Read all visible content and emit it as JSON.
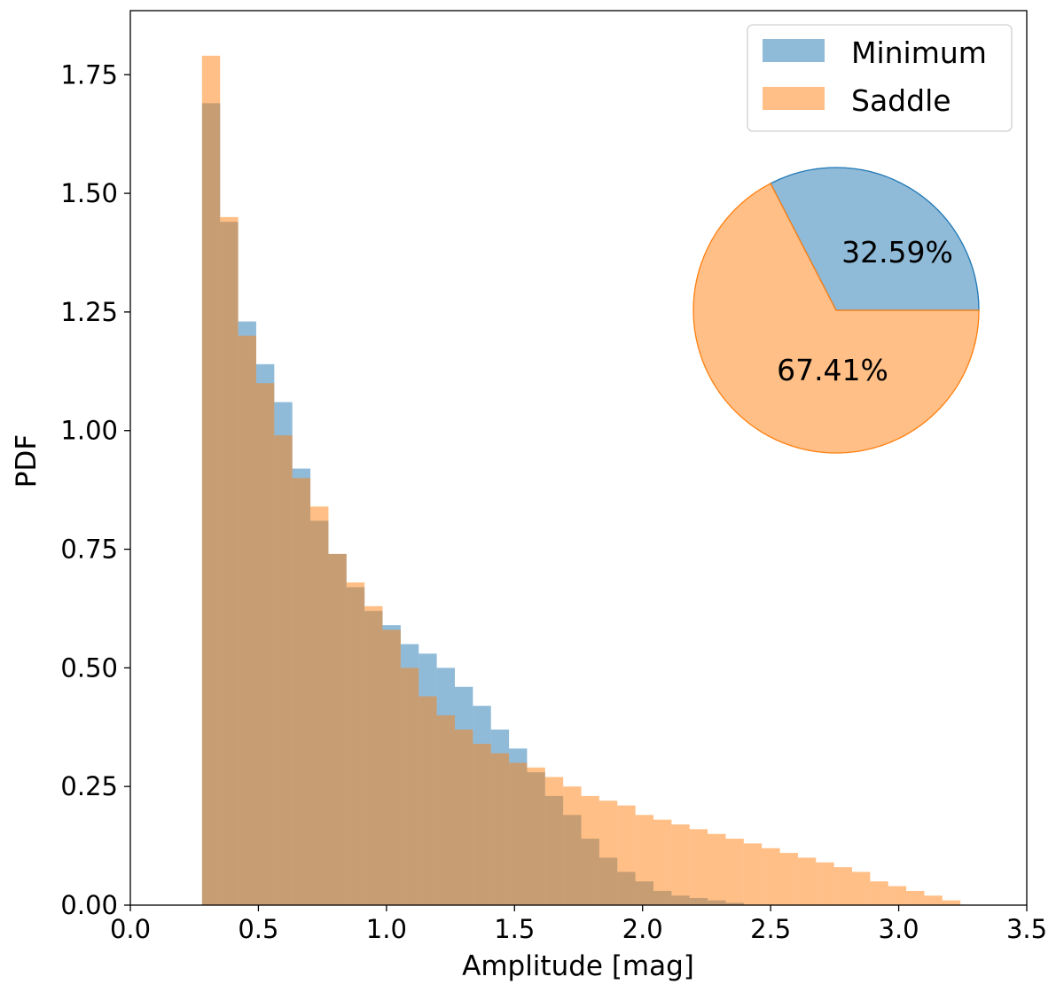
{
  "chart_data": {
    "type": "histogram",
    "title": "",
    "xlabel": "Amplitude [mag]",
    "ylabel": "PDF",
    "xlim": [
      0.0,
      3.5
    ],
    "ylim": [
      0.0,
      1.885
    ],
    "x_ticks": [
      "0.0",
      "0.5",
      "1.0",
      "1.5",
      "2.0",
      "2.5",
      "3.0",
      "3.5"
    ],
    "y_ticks": [
      "0.00",
      "0.25",
      "0.50",
      "0.75",
      "1.00",
      "1.25",
      "1.50",
      "1.75"
    ],
    "x_tick_values": [
      0.0,
      0.5,
      1.0,
      1.5,
      2.0,
      2.5,
      3.0,
      3.5
    ],
    "y_tick_values": [
      0.0,
      0.25,
      0.5,
      0.75,
      1.0,
      1.25,
      1.5,
      1.75
    ],
    "grid": false,
    "legend_position": "top-right",
    "bin_start": 0.28,
    "bin_width": 0.0705,
    "series": [
      {
        "name": "Minimum",
        "color": "#1f77b4",
        "values": [
          1.69,
          1.44,
          1.23,
          1.14,
          1.06,
          0.92,
          0.81,
          0.74,
          0.67,
          0.62,
          0.59,
          0.55,
          0.53,
          0.5,
          0.46,
          0.42,
          0.37,
          0.33,
          0.28,
          0.23,
          0.19,
          0.14,
          0.1,
          0.07,
          0.05,
          0.03,
          0.02,
          0.015,
          0.01,
          0.005
        ]
      },
      {
        "name": "Saddle",
        "color": "#ff7f0e",
        "values": [
          1.79,
          1.45,
          1.2,
          1.1,
          0.99,
          0.9,
          0.84,
          0.74,
          0.68,
          0.63,
          0.58,
          0.5,
          0.44,
          0.4,
          0.37,
          0.34,
          0.32,
          0.3,
          0.29,
          0.27,
          0.25,
          0.23,
          0.22,
          0.21,
          0.19,
          0.18,
          0.17,
          0.16,
          0.15,
          0.14,
          0.13,
          0.12,
          0.11,
          0.1,
          0.09,
          0.08,
          0.07,
          0.05,
          0.04,
          0.03,
          0.02,
          0.01
        ]
      }
    ],
    "legend": [
      {
        "label": "Minimum",
        "color": "#1f77b4"
      },
      {
        "label": "Saddle",
        "color": "#ff7f0e"
      }
    ],
    "inset_pie": {
      "slices": [
        {
          "name": "Minimum",
          "value": 32.59,
          "label": "32.59%",
          "color": "#1f77b4"
        },
        {
          "name": "Saddle",
          "value": 67.41,
          "label": "67.41%",
          "color": "#ff7f0e"
        }
      ]
    }
  }
}
